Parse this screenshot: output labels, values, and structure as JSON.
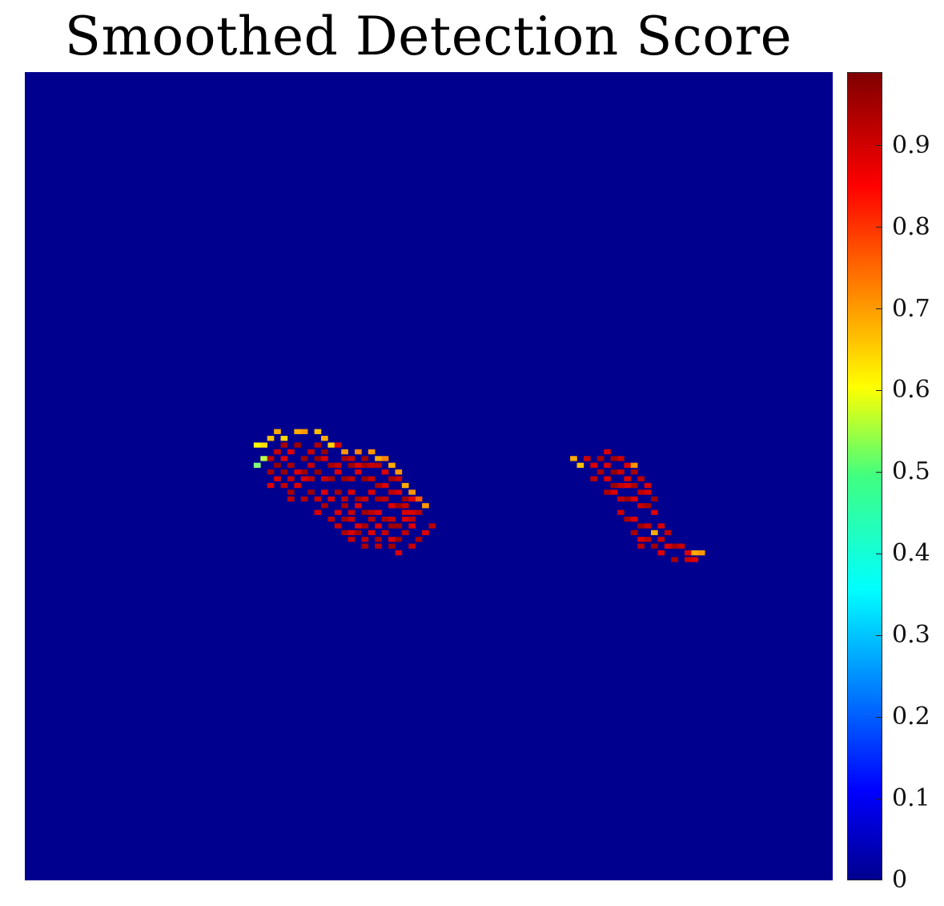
{
  "chart_data": {
    "type": "heatmap",
    "title": "Smoothed Detection Score",
    "xlabel": "",
    "ylabel": "",
    "grid_size": [
      120,
      120
    ],
    "background_value": 0,
    "colormap": "jet",
    "colorbar": {
      "range": [
        0,
        0.99
      ],
      "ticks": [
        0,
        0.1,
        0.2,
        0.3,
        0.4,
        0.5,
        0.6,
        0.7,
        0.8,
        0.9
      ],
      "tick_labels": [
        "0",
        "0.1",
        "0.2",
        "0.3",
        "0.4",
        "0.5",
        "0.6",
        "0.7",
        "0.8",
        "0.9"
      ],
      "placement": "right"
    },
    "cells": [
      [
        34,
        55,
        0.62
      ],
      [
        35,
        55,
        0.65
      ],
      [
        36,
        54,
        0.68
      ],
      [
        37,
        53,
        0.7
      ],
      [
        38,
        54,
        0.66
      ],
      [
        40,
        53,
        0.7
      ],
      [
        41,
        53,
        0.72
      ],
      [
        43,
        53,
        0.68
      ],
      [
        44,
        54,
        0.7
      ],
      [
        45,
        55,
        0.66
      ],
      [
        47,
        56,
        0.72
      ],
      [
        49,
        56,
        0.74
      ],
      [
        51,
        56,
        0.72
      ],
      [
        52,
        57,
        0.7
      ],
      [
        53,
        57,
        0.74
      ],
      [
        54,
        58,
        0.7
      ],
      [
        55,
        59,
        0.72
      ],
      [
        56,
        61,
        0.7
      ],
      [
        57,
        62,
        0.72
      ],
      [
        58,
        63,
        0.78
      ],
      [
        59,
        64,
        0.72
      ],
      [
        35,
        57,
        0.55
      ],
      [
        34,
        58,
        0.5
      ],
      [
        37,
        56,
        0.92
      ],
      [
        38,
        55,
        0.95
      ],
      [
        39,
        56,
        0.9
      ],
      [
        40,
        55,
        0.96
      ],
      [
        42,
        56,
        0.92
      ],
      [
        43,
        55,
        0.94
      ],
      [
        44,
        56,
        0.97
      ],
      [
        46,
        55,
        0.9
      ],
      [
        47,
        57,
        0.95
      ],
      [
        48,
        57,
        0.92
      ],
      [
        50,
        57,
        0.96
      ],
      [
        36,
        57,
        0.93
      ],
      [
        37,
        58,
        0.97
      ],
      [
        38,
        57,
        0.9
      ],
      [
        39,
        58,
        0.95
      ],
      [
        41,
        57,
        0.96
      ],
      [
        42,
        58,
        0.92
      ],
      [
        43,
        57,
        0.97
      ],
      [
        44,
        57,
        0.9
      ],
      [
        45,
        58,
        0.95
      ],
      [
        46,
        58,
        0.92
      ],
      [
        48,
        58,
        0.96
      ],
      [
        49,
        58,
        0.9
      ],
      [
        50,
        58,
        0.95
      ],
      [
        51,
        58,
        0.92
      ],
      [
        52,
        58,
        0.93
      ],
      [
        53,
        59,
        0.9
      ],
      [
        54,
        60,
        0.95
      ],
      [
        55,
        60,
        0.92
      ],
      [
        36,
        59,
        0.95
      ],
      [
        37,
        60,
        0.9
      ],
      [
        38,
        59,
        0.97
      ],
      [
        39,
        60,
        0.92
      ],
      [
        40,
        59,
        0.9
      ],
      [
        41,
        59,
        0.96
      ],
      [
        42,
        60,
        0.93
      ],
      [
        43,
        59,
        0.97
      ],
      [
        44,
        60,
        0.92
      ],
      [
        45,
        60,
        0.95
      ],
      [
        46,
        59,
        0.9
      ],
      [
        47,
        60,
        0.96
      ],
      [
        48,
        60,
        0.93
      ],
      [
        49,
        59,
        0.9
      ],
      [
        50,
        60,
        0.97
      ],
      [
        51,
        60,
        0.92
      ],
      [
        52,
        61,
        0.95
      ],
      [
        53,
        61,
        0.9
      ],
      [
        54,
        62,
        0.93
      ],
      [
        55,
        62,
        0.9
      ],
      [
        56,
        63,
        0.96
      ],
      [
        57,
        63,
        0.9
      ],
      [
        36,
        61,
        0.9
      ],
      [
        38,
        61,
        0.93
      ],
      [
        39,
        62,
        0.95
      ],
      [
        40,
        61,
        0.9
      ],
      [
        42,
        62,
        0.96
      ],
      [
        43,
        63,
        0.92
      ],
      [
        44,
        62,
        0.9
      ],
      [
        46,
        62,
        0.95
      ],
      [
        47,
        63,
        0.93
      ],
      [
        48,
        62,
        0.9
      ],
      [
        49,
        63,
        0.96
      ],
      [
        50,
        63,
        0.92
      ],
      [
        51,
        62,
        0.9
      ],
      [
        52,
        63,
        0.95
      ],
      [
        53,
        63,
        0.93
      ],
      [
        54,
        64,
        0.9
      ],
      [
        55,
        64,
        0.96
      ],
      [
        56,
        64,
        0.92
      ],
      [
        57,
        65,
        0.9
      ],
      [
        41,
        63,
        0.94
      ],
      [
        45,
        63,
        0.9
      ],
      [
        47,
        64,
        0.95
      ],
      [
        48,
        65,
        0.92
      ],
      [
        49,
        64,
        0.9
      ],
      [
        50,
        65,
        0.96
      ],
      [
        51,
        65,
        0.93
      ],
      [
        52,
        65,
        0.9
      ],
      [
        53,
        66,
        0.95
      ],
      [
        54,
        66,
        0.92
      ],
      [
        56,
        66,
        0.9
      ],
      [
        57,
        66,
        0.93
      ],
      [
        55,
        67,
        0.96
      ],
      [
        43,
        65,
        0.9
      ],
      [
        44,
        64,
        0.95
      ],
      [
        45,
        66,
        0.93
      ],
      [
        46,
        65,
        0.9
      ],
      [
        47,
        66,
        0.96
      ],
      [
        48,
        66,
        0.92
      ],
      [
        49,
        67,
        0.9
      ],
      [
        50,
        67,
        0.95
      ],
      [
        51,
        66,
        0.93
      ],
      [
        52,
        67,
        0.9
      ],
      [
        54,
        67,
        0.96
      ],
      [
        56,
        65,
        0.9
      ],
      [
        58,
        65,
        0.93
      ],
      [
        46,
        67,
        0.92
      ],
      [
        47,
        68,
        0.95
      ],
      [
        48,
        68,
        0.9
      ],
      [
        49,
        68,
        0.96
      ],
      [
        50,
        69,
        0.93
      ],
      [
        51,
        68,
        0.9
      ],
      [
        52,
        69,
        0.95
      ],
      [
        53,
        68,
        0.92
      ],
      [
        54,
        69,
        0.9
      ],
      [
        55,
        69,
        0.96
      ],
      [
        56,
        68,
        0.93
      ],
      [
        57,
        67,
        0.9
      ],
      [
        48,
        69,
        0.92
      ],
      [
        50,
        70,
        0.95
      ],
      [
        52,
        70,
        0.93
      ],
      [
        54,
        70,
        0.96
      ],
      [
        55,
        71,
        0.9
      ],
      [
        57,
        70,
        0.92
      ],
      [
        58,
        69,
        0.95
      ],
      [
        59,
        68,
        0.9
      ],
      [
        60,
        67,
        0.93
      ],
      [
        41,
        60,
        0.9
      ],
      [
        39,
        63,
        0.93
      ],
      [
        81,
        57,
        0.7
      ],
      [
        82,
        58,
        0.68
      ],
      [
        83,
        57,
        0.92
      ],
      [
        84,
        58,
        0.9
      ],
      [
        85,
        57,
        0.95
      ],
      [
        86,
        56,
        0.9
      ],
      [
        87,
        57,
        0.96
      ],
      [
        88,
        57,
        0.92
      ],
      [
        89,
        58,
        0.9
      ],
      [
        90,
        58,
        0.72
      ],
      [
        85,
        59,
        0.95
      ],
      [
        86,
        58,
        0.9
      ],
      [
        87,
        59,
        0.97
      ],
      [
        88,
        59,
        0.92
      ],
      [
        89,
        60,
        0.9
      ],
      [
        90,
        59,
        0.95
      ],
      [
        91,
        60,
        0.93
      ],
      [
        92,
        61,
        0.9
      ],
      [
        84,
        60,
        0.93
      ],
      [
        86,
        60,
        0.9
      ],
      [
        87,
        61,
        0.96
      ],
      [
        88,
        61,
        0.92
      ],
      [
        89,
        61,
        0.9
      ],
      [
        90,
        61,
        0.95
      ],
      [
        91,
        62,
        0.93
      ],
      [
        92,
        62,
        0.9
      ],
      [
        93,
        63,
        0.96
      ],
      [
        86,
        62,
        0.95
      ],
      [
        87,
        62,
        0.9
      ],
      [
        88,
        63,
        0.93
      ],
      [
        89,
        63,
        0.96
      ],
      [
        90,
        63,
        0.9
      ],
      [
        91,
        64,
        0.92
      ],
      [
        92,
        64,
        0.95
      ],
      [
        93,
        65,
        0.9
      ],
      [
        88,
        65,
        0.92
      ],
      [
        89,
        66,
        0.95
      ],
      [
        90,
        66,
        0.9
      ],
      [
        91,
        67,
        0.96
      ],
      [
        92,
        67,
        0.92
      ],
      [
        93,
        68,
        0.7
      ],
      [
        94,
        67,
        0.9
      ],
      [
        95,
        68,
        0.93
      ],
      [
        90,
        68,
        0.95
      ],
      [
        91,
        69,
        0.9
      ],
      [
        92,
        69,
        0.93
      ],
      [
        93,
        70,
        0.96
      ],
      [
        94,
        69,
        0.92
      ],
      [
        95,
        70,
        0.9
      ],
      [
        96,
        70,
        0.95
      ],
      [
        97,
        70,
        0.92
      ],
      [
        98,
        71,
        0.9
      ],
      [
        99,
        71,
        0.7
      ],
      [
        100,
        71,
        0.72
      ],
      [
        91,
        70,
        0.93
      ],
      [
        94,
        71,
        0.9
      ],
      [
        96,
        72,
        0.95
      ],
      [
        98,
        72,
        0.92
      ],
      [
        99,
        72,
        0.9
      ]
    ]
  }
}
